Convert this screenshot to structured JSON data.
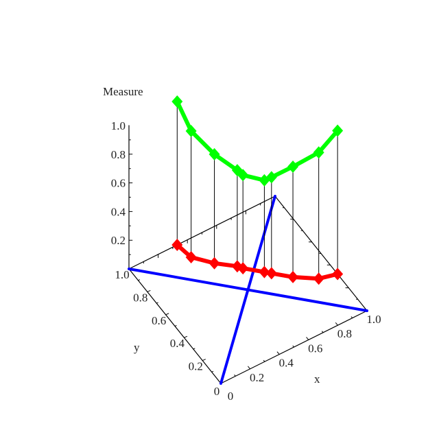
{
  "chart_data": {
    "type": "line3d",
    "title": "",
    "xlabel": "x",
    "ylabel": "y",
    "zlabel": "Measure",
    "xlim": [
      0,
      1
    ],
    "ylim": [
      0,
      1
    ],
    "zlim": [
      0,
      1
    ],
    "x_ticks": [
      "0",
      "0.2",
      "0.4",
      "0.6",
      "0.8",
      "1.0"
    ],
    "y_ticks": [
      "0",
      "0.2",
      "0.4",
      "0.6",
      "0.8",
      "1.0"
    ],
    "z_ticks": [
      "0.2",
      "0.4",
      "0.6",
      "0.8",
      "1.0"
    ],
    "path_points": [
      {
        "x": 0.33,
        "y": 1.0
      },
      {
        "x": 0.35,
        "y": 0.88
      },
      {
        "x": 0.44,
        "y": 0.77
      },
      {
        "x": 0.54,
        "y": 0.68
      },
      {
        "x": 0.56,
        "y": 0.65
      },
      {
        "x": 0.65,
        "y": 0.56
      },
      {
        "x": 0.68,
        "y": 0.53
      },
      {
        "x": 0.77,
        "y": 0.44
      },
      {
        "x": 0.89,
        "y": 0.35
      },
      {
        "x": 1.0,
        "y": 0.32
      }
    ],
    "measure_values": [
      1.0,
      0.88,
      0.76,
      0.67,
      0.65,
      0.64,
      0.67,
      0.77,
      0.88,
      1.0
    ],
    "diagonals": [
      [
        [
          0,
          0
        ],
        [
          1,
          1
        ]
      ],
      [
        [
          0,
          1
        ],
        [
          1,
          0
        ]
      ]
    ],
    "colors": {
      "measure_curve": "#00ff00",
      "floor_path": "#ff0000",
      "diagonals": "#0000ff",
      "axes": "#000000"
    }
  }
}
